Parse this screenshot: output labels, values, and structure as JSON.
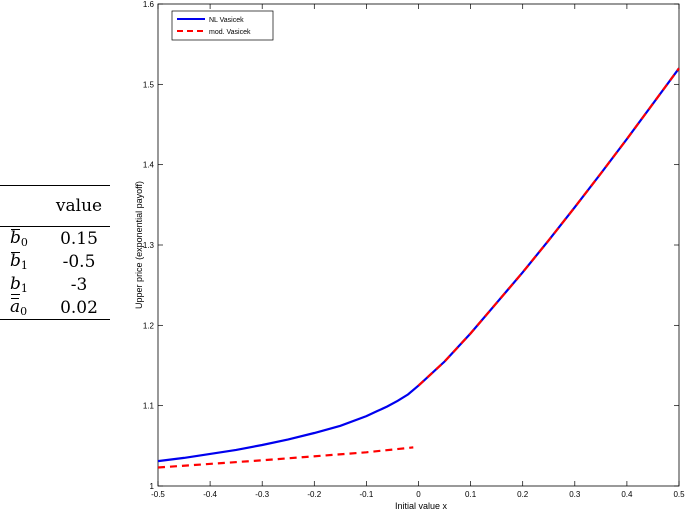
{
  "params_table": {
    "header": "value",
    "rows": [
      {
        "symbol": "b",
        "sub": "0",
        "bar": "over",
        "value": "0.15"
      },
      {
        "symbol": "b",
        "sub": "1",
        "bar": "over",
        "value": "-0.5"
      },
      {
        "symbol": "b",
        "sub": "1",
        "bar": "under",
        "value": "-3"
      },
      {
        "symbol": "a",
        "sub": "0",
        "bar": "over",
        "value": "0.02"
      }
    ]
  },
  "chart_data": {
    "type": "line",
    "title": "",
    "xlabel": "Initial value x",
    "ylabel": "Upper price (exponential payoff)",
    "xlim": [
      -0.5,
      0.5
    ],
    "ylim": [
      1,
      1.6
    ],
    "xticks": [
      -0.5,
      -0.4,
      -0.3,
      -0.2,
      -0.1,
      0,
      0.1,
      0.2,
      0.3,
      0.4,
      0.5
    ],
    "yticks": [
      1,
      1.1,
      1.2,
      1.3,
      1.4,
      1.5,
      1.6
    ],
    "xtick_labels": [
      "-0.5",
      "-0.4",
      "-0.3",
      "-0.2",
      "-0.1",
      "0",
      "0.1",
      "0.2",
      "0.3",
      "0.4",
      "0.5"
    ],
    "ytick_labels": [
      "1",
      "1.1",
      "1.2",
      "1.3",
      "1.4",
      "1.5",
      "1.6"
    ],
    "legend_position": "top-left",
    "grid": false,
    "series": [
      {
        "name": "NL Vasicek",
        "color": "#0000ee",
        "style": "solid",
        "x": [
          -0.5,
          -0.45,
          -0.4,
          -0.35,
          -0.3,
          -0.25,
          -0.2,
          -0.15,
          -0.1,
          -0.08,
          -0.06,
          -0.04,
          -0.02,
          0,
          0.05,
          0.1,
          0.15,
          0.2,
          0.25,
          0.3,
          0.35,
          0.4,
          0.45,
          0.5
        ],
        "y": [
          1.031,
          1.035,
          1.04,
          1.045,
          1.051,
          1.058,
          1.066,
          1.075,
          1.087,
          1.093,
          1.099,
          1.106,
          1.114,
          1.125,
          1.155,
          1.19,
          1.228,
          1.266,
          1.306,
          1.347,
          1.389,
          1.432,
          1.476,
          1.52
        ]
      },
      {
        "name": "mod. Vasicek",
        "color": "#ff0000",
        "style": "dashed",
        "segments": [
          {
            "x": [
              -0.5,
              -0.3,
              -0.1,
              -0.01
            ],
            "y": [
              1.023,
              1.032,
              1.042,
              1.048
            ]
          },
          {
            "x": [
              0,
              0.05,
              0.1,
              0.15,
              0.2,
              0.25,
              0.3,
              0.35,
              0.4,
              0.45,
              0.5
            ],
            "y": [
              1.125,
              1.155,
              1.19,
              1.228,
              1.266,
              1.306,
              1.347,
              1.389,
              1.432,
              1.476,
              1.52
            ]
          }
        ]
      }
    ]
  }
}
